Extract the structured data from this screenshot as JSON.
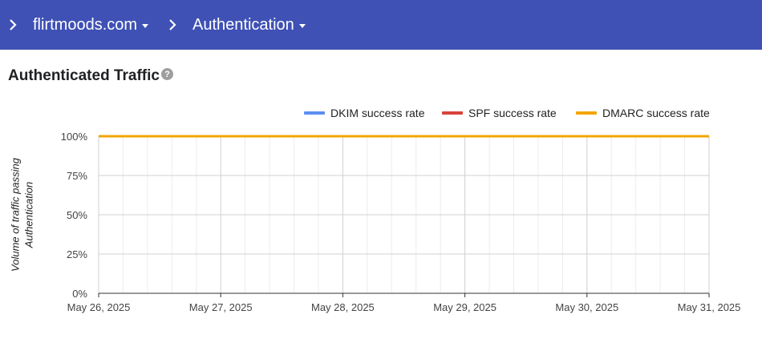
{
  "breadcrumb": {
    "items": [
      {
        "label": "flirtmoods.com"
      },
      {
        "label": "Authentication"
      }
    ]
  },
  "page": {
    "title": "Authenticated Traffic"
  },
  "chart_data": {
    "type": "line",
    "ylabel": "Volume of traffic passing Authentication",
    "ylabel_lines": [
      "Volume of traffic passing",
      "Authentication"
    ],
    "y_ticks": [
      "0%",
      "25%",
      "50%",
      "75%",
      "100%"
    ],
    "ylim": [
      0,
      100
    ],
    "x_ticks": [
      "May 26, 2025",
      "May 27, 2025",
      "May 28, 2025",
      "May 29, 2025",
      "May 30, 2025",
      "May 31, 2025"
    ],
    "x": [
      "May 26, 2025",
      "May 27, 2025",
      "May 28, 2025",
      "May 29, 2025",
      "May 30, 2025",
      "May 31, 2025"
    ],
    "grid": true,
    "legend_position": "top-right",
    "series": [
      {
        "name": "DKIM success rate",
        "color": "#5b8ff0",
        "values": [
          100,
          100,
          100,
          100,
          100,
          100
        ]
      },
      {
        "name": "SPF success rate",
        "color": "#d9423a",
        "values": [
          100,
          100,
          100,
          100,
          100,
          100
        ]
      },
      {
        "name": "DMARC success rate",
        "color": "#f2a505",
        "values": [
          100,
          100,
          100,
          100,
          100,
          100
        ]
      }
    ]
  },
  "colors": {
    "header_bg": "#3f51b5",
    "grid": "#d0d0d0",
    "minor_grid": "#ececec"
  },
  "icons": {
    "breadcrumb_separator": "chevron-right-icon",
    "dropdown": "caret-down-icon",
    "help": "help-icon"
  }
}
